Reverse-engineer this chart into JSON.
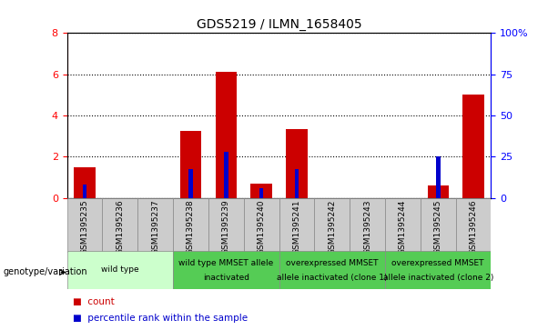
{
  "title": "GDS5219 / ILMN_1658405",
  "samples": [
    "GSM1395235",
    "GSM1395236",
    "GSM1395237",
    "GSM1395238",
    "GSM1395239",
    "GSM1395240",
    "GSM1395241",
    "GSM1395242",
    "GSM1395243",
    "GSM1395244",
    "GSM1395245",
    "GSM1395246"
  ],
  "count_values": [
    1.5,
    0.0,
    0.0,
    3.25,
    6.1,
    0.7,
    3.35,
    0.0,
    0.0,
    0.0,
    0.6,
    5.0
  ],
  "percentile_values": [
    8.0,
    0.0,
    0.0,
    17.5,
    28.0,
    6.0,
    17.5,
    0.0,
    0.0,
    0.0,
    25.0,
    0.0
  ],
  "ylim_left": [
    0,
    8
  ],
  "ylim_right": [
    0,
    100
  ],
  "yticks_left": [
    0,
    2,
    4,
    6,
    8
  ],
  "yticks_right": [
    0,
    25,
    50,
    75,
    100
  ],
  "ytick_labels_right": [
    "0",
    "25",
    "50",
    "75",
    "100%"
  ],
  "bar_color": "#cc0000",
  "percentile_color": "#0000cc",
  "bar_width": 0.6,
  "perc_bar_width": 0.12,
  "genotype_groups": [
    {
      "label": "wild type",
      "start": 0,
      "end": 2,
      "color": "#ccffcc"
    },
    {
      "label": "wild type MMSET allele\ninactivated",
      "start": 3,
      "end": 5,
      "color": "#66dd66"
    },
    {
      "label": "overexpressed MMSET\nallele inactivated (clone 1)",
      "start": 6,
      "end": 8,
      "color": "#66dd66"
    },
    {
      "label": "overexpressed MMSET\nallele inactivated (clone 2)",
      "start": 9,
      "end": 11,
      "color": "#66dd66"
    }
  ],
  "legend_count_label": "count",
  "legend_percentile_label": "percentile rank within the sample",
  "genotype_label": "genotype/variation",
  "tick_bg_color": "#cccccc",
  "plot_bg_color": "#ffffff"
}
